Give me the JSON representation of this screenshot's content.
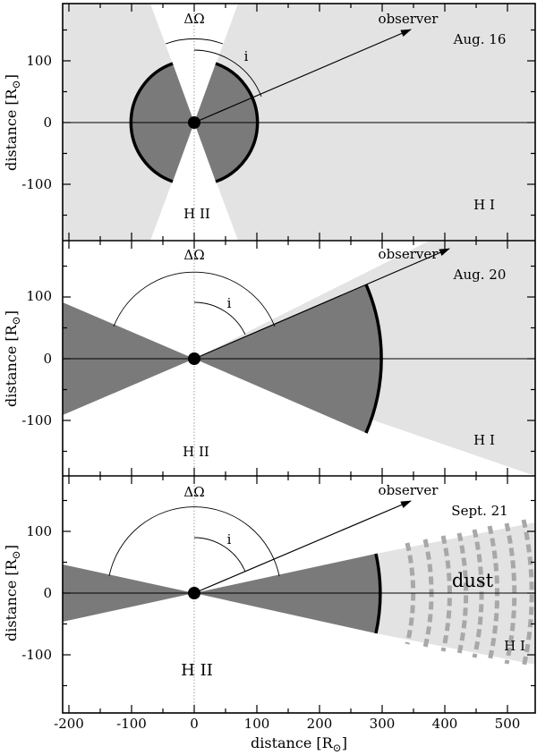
{
  "axes": {
    "x_label": "distance [R",
    "x_label_sub": "⊙",
    "x_label_close": "]",
    "y_label": "distance [R",
    "y_label_sub": "⊙",
    "y_label_close": "]",
    "x_range": [
      -210,
      545
    ],
    "y_range": [
      -190,
      190
    ],
    "x_ticks": [
      -200,
      -100,
      0,
      100,
      200,
      300,
      400,
      500
    ],
    "y_ticks": [
      -100,
      0,
      100
    ]
  },
  "panels": [
    {
      "date": "Aug. 16",
      "observer_label": "observer",
      "delta_omega_label": "ΔΩ",
      "inclination_label": "i",
      "hii_label": "H II",
      "hi_label": "H I",
      "dust_label": "",
      "cone_half_angle_deg": 20,
      "shell_radius": 100,
      "observer_angle_deg": 69,
      "colors": {
        "hi": "#e3e3e3",
        "hii": "#ffffff",
        "ejecta": "#7a7a7a"
      }
    },
    {
      "date": "Aug. 20",
      "observer_label": "observer",
      "delta_omega_label": "ΔΩ",
      "inclination_label": "i",
      "hii_label": "H II",
      "hi_label": "H I",
      "dust_label": "",
      "cone_half_angle_deg": 68,
      "shell_radius": 300,
      "observer_angle_deg": 67,
      "colors": {
        "hi": "#e3e3e3",
        "hii": "#ffffff",
        "ejecta": "#7a7a7a"
      }
    },
    {
      "date": "Sept. 21",
      "observer_label": "observer",
      "delta_omega_label": "ΔΩ",
      "inclination_label": "i",
      "hii_label": "H II",
      "hi_label": "H I",
      "dust_label": "dust",
      "cone_half_angle_deg": 78,
      "shell_radius": 300,
      "observer_angle_deg": 67,
      "colors": {
        "hi": "#e3e3e3",
        "hii": "#ffffff",
        "ejecta": "#7a7a7a",
        "dust": "#a8a8a8"
      }
    }
  ]
}
